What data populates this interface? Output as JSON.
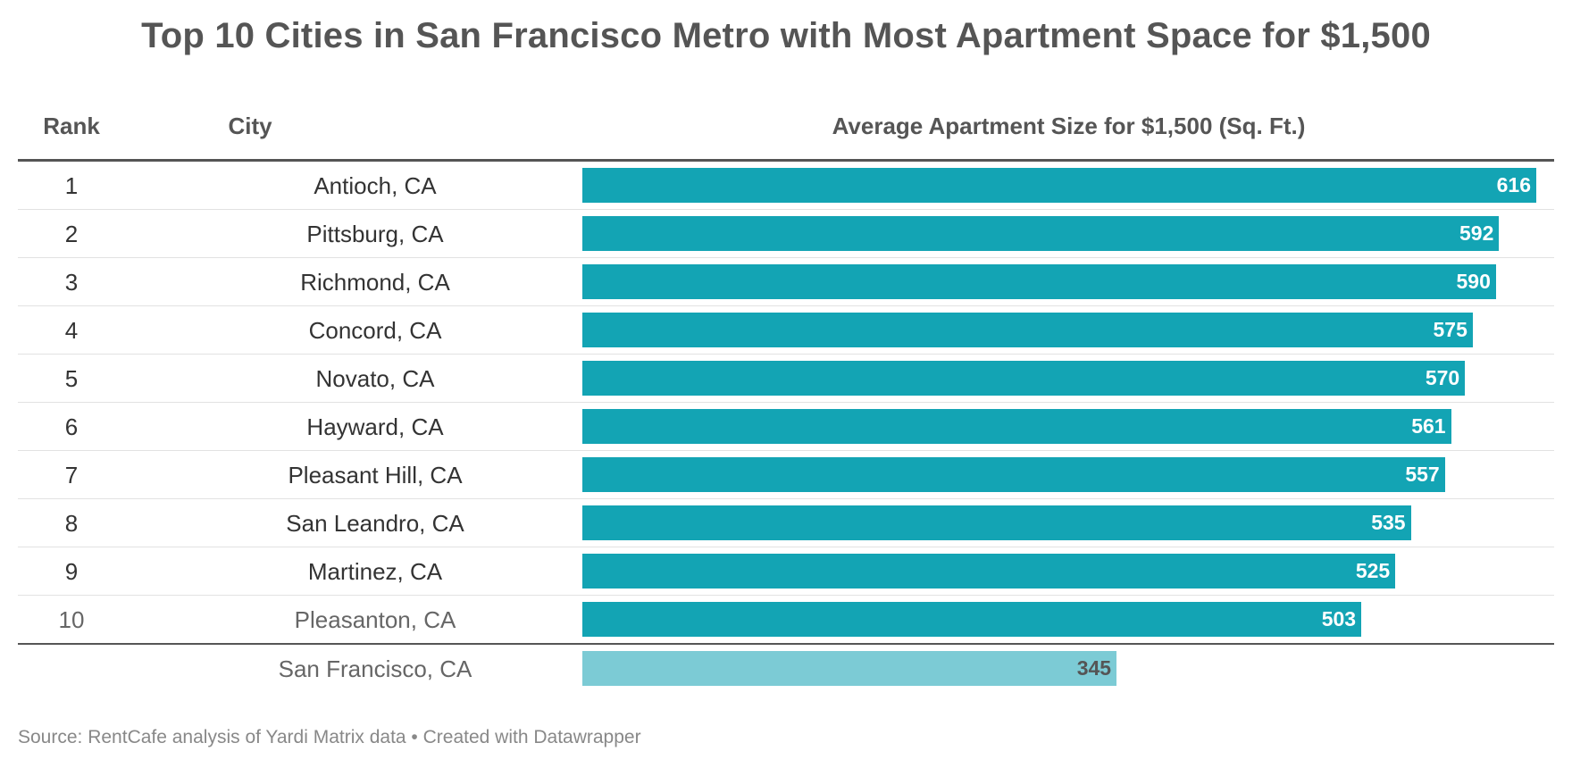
{
  "title": "Top 10 Cities in San Francisco Metro with Most Apartment Space for $1,500",
  "columns": {
    "rank": "Rank",
    "city": "City",
    "size": "Average Apartment Size for $1,500 (Sq. Ft.)"
  },
  "source": "Source: RentCafe analysis of Yardi Matrix data • Created with Datawrapper",
  "colors": {
    "bar": "#13a4b4",
    "reference_bar": "#7ccbd5",
    "header_rule": "#555555"
  },
  "chart_data": {
    "type": "bar",
    "orientation": "horizontal",
    "title": "Top 10 Cities in San Francisco Metro with Most Apartment Space for $1,500",
    "xlabel": "Average Apartment Size for $1,500 (Sq. Ft.)",
    "ylabel": "",
    "xlim": [
      0,
      640
    ],
    "grid": false,
    "rows": [
      {
        "rank": "1",
        "city": "Antioch, CA",
        "value": 616
      },
      {
        "rank": "2",
        "city": "Pittsburg, CA",
        "value": 592
      },
      {
        "rank": "3",
        "city": "Richmond, CA",
        "value": 590
      },
      {
        "rank": "4",
        "city": "Concord, CA",
        "value": 575
      },
      {
        "rank": "5",
        "city": "Novato, CA",
        "value": 570
      },
      {
        "rank": "6",
        "city": "Hayward, CA",
        "value": 561
      },
      {
        "rank": "7",
        "city": "Pleasant Hill, CA",
        "value": 557
      },
      {
        "rank": "8",
        "city": "San Leandro, CA",
        "value": 535
      },
      {
        "rank": "9",
        "city": "Martinez, CA",
        "value": 525
      },
      {
        "rank": "10",
        "city": "Pleasanton, CA",
        "value": 503
      }
    ],
    "reference": {
      "rank": "",
      "city": "San Francisco, CA",
      "value": 345
    }
  }
}
